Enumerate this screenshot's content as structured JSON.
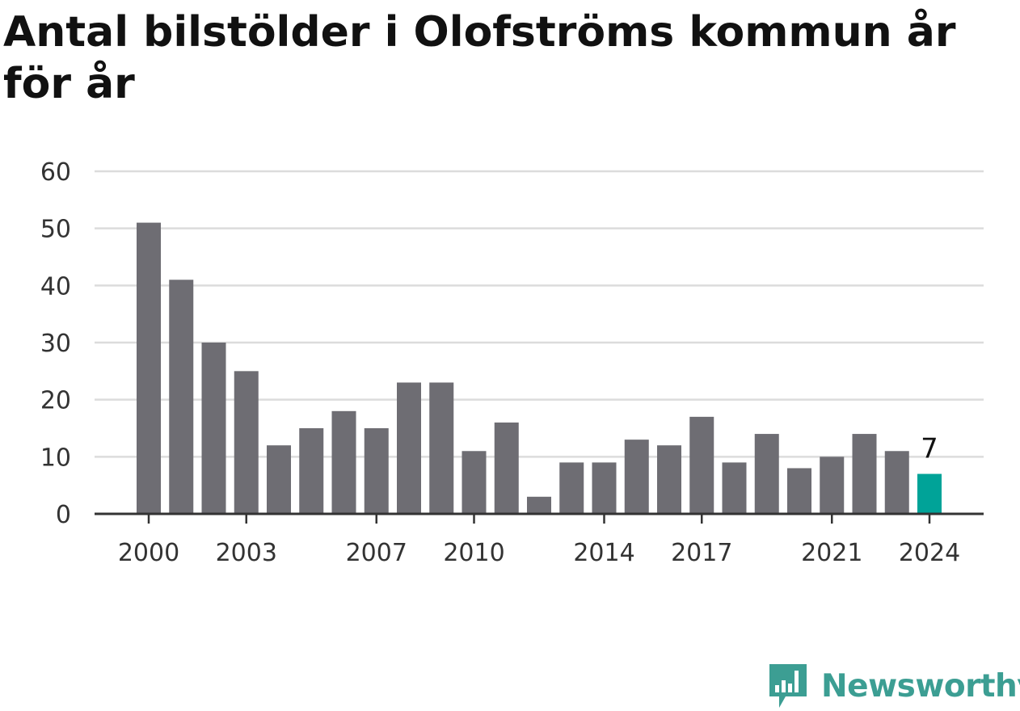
{
  "chart_data": {
    "type": "bar",
    "title": "Antal bilstölder i Olofströms kommun år för år",
    "categories": [
      "2000",
      "2001",
      "2002",
      "2003",
      "2004",
      "2005",
      "2006",
      "2007",
      "2008",
      "2009",
      "2010",
      "2011",
      "2012",
      "2013",
      "2014",
      "2015",
      "2016",
      "2017",
      "2018",
      "2019",
      "2020",
      "2021",
      "2022",
      "2023",
      "2024"
    ],
    "values": [
      51,
      41,
      30,
      25,
      12,
      15,
      18,
      15,
      23,
      23,
      11,
      16,
      3,
      9,
      9,
      13,
      12,
      17,
      9,
      14,
      8,
      10,
      14,
      11,
      7
    ],
    "xtick_labels": [
      "2000",
      "2003",
      "2007",
      "2010",
      "2014",
      "2017",
      "2021",
      "2024"
    ],
    "yticks": [
      0,
      10,
      20,
      30,
      40,
      50,
      60
    ],
    "ylim": [
      0,
      60
    ],
    "xlabel": "",
    "ylabel": "",
    "grid": true,
    "highlight": {
      "category": "2024",
      "label": "7"
    },
    "colors": {
      "bar": "#6e6d73",
      "highlight": "#00a398",
      "grid": "#dcdcdc",
      "axis": "#333333"
    }
  },
  "brand": {
    "name": "Newsworthy",
    "icon": "newsworthy-logo-icon",
    "color": "#3c9e93"
  }
}
